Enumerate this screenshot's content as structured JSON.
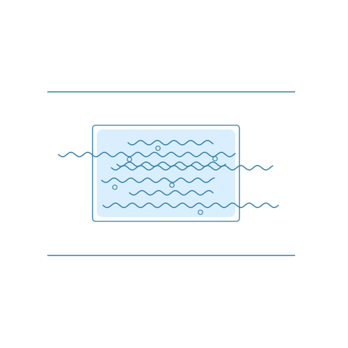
{
  "illustration": {
    "subject": "water-pool-icon",
    "colors": {
      "stroke": "#2f7fab",
      "frame_stroke": "#4a8fb8",
      "water_fill": "#d9efff",
      "background": "#ffffff"
    },
    "bubble_count": 6,
    "wave_count": 7
  }
}
